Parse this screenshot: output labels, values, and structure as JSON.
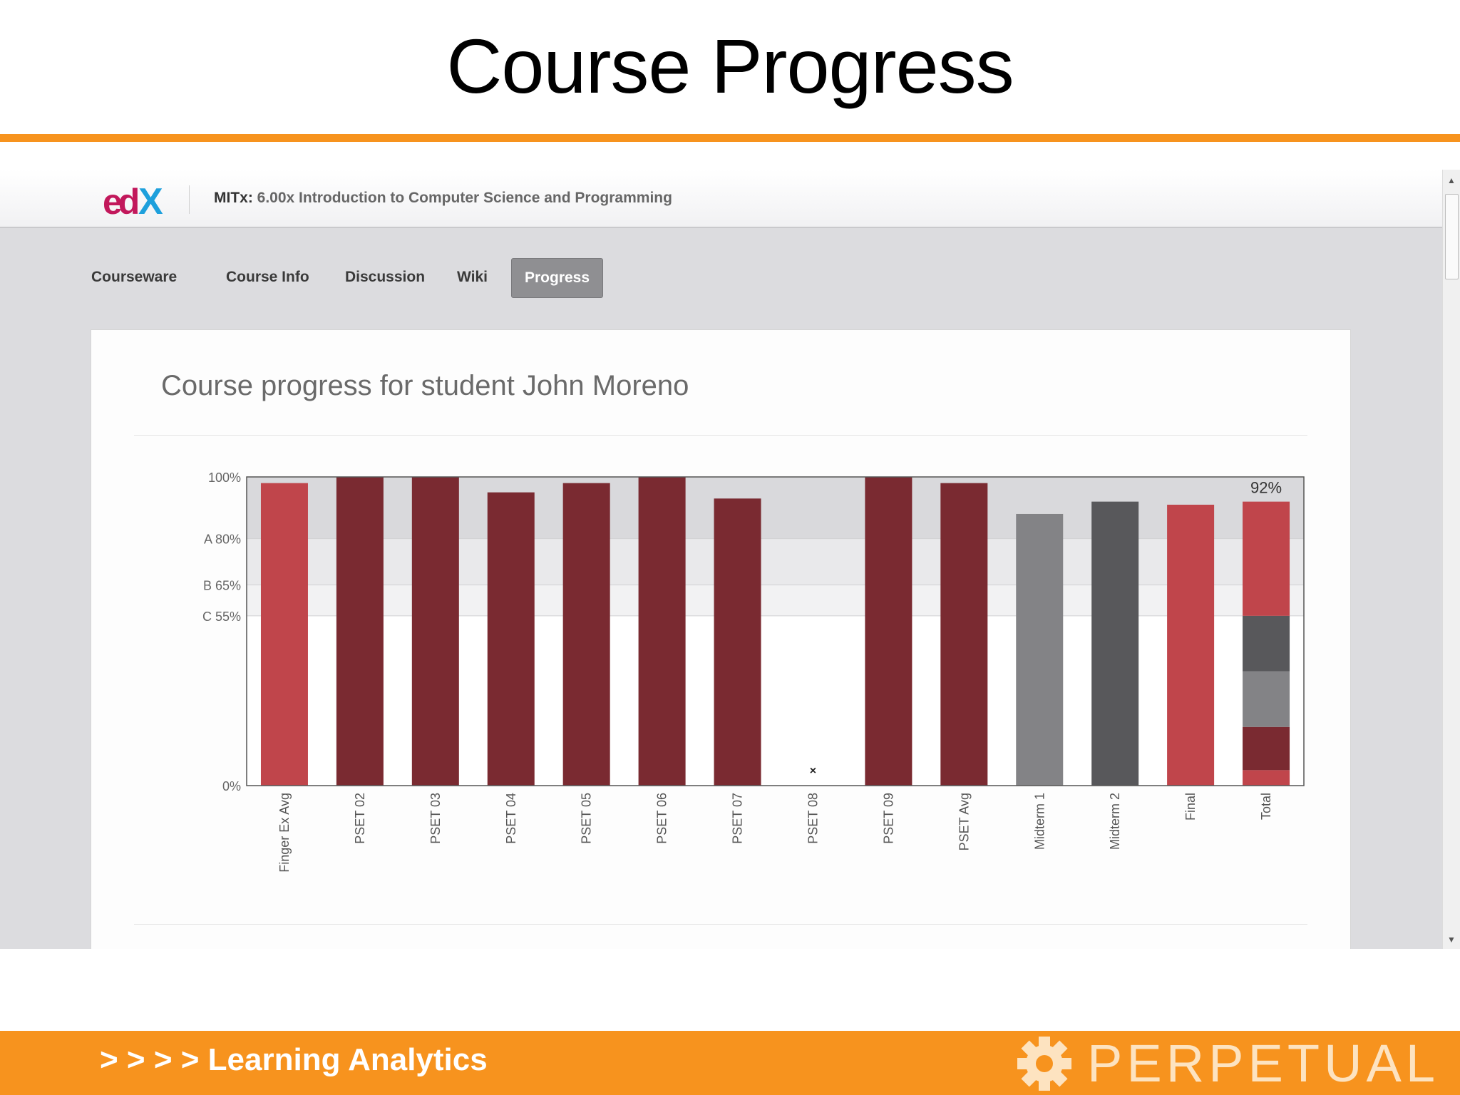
{
  "slide": {
    "title": "Course Progress",
    "footer": "> > > > Learning Analytics",
    "brand": "PERPETUAL"
  },
  "edx": {
    "logo": "edX",
    "course_org": "MITx:",
    "course_name": "6.00x Introduction to Computer Science and Programming",
    "tabs": [
      {
        "label": "Courseware",
        "active": false
      },
      {
        "label": "Course Info",
        "active": false
      },
      {
        "label": "Discussion",
        "active": false
      },
      {
        "label": "Wiki",
        "active": false
      },
      {
        "label": "Progress",
        "active": true
      }
    ],
    "heading": "Course progress for student John Moreno"
  },
  "colors": {
    "accent_orange": "#f7931e",
    "bar_light_red": "#c0454b",
    "bar_dark_red": "#7a2a31",
    "bar_gray": "#838386",
    "bar_dark_gray": "#58585b",
    "edx_magenta": "#c2185b",
    "edx_blue": "#1ea0dc"
  },
  "chart_data": {
    "type": "bar",
    "categories": [
      "Finger Ex Avg",
      "PSET 02",
      "PSET 03",
      "PSET 04",
      "PSET 05",
      "PSET 06",
      "PSET 07",
      "PSET 08",
      "PSET 09",
      "PSET Avg",
      "Midterm 1",
      "Midterm 2",
      "Final",
      "Total"
    ],
    "values": [
      98,
      100,
      100,
      95,
      98,
      100,
      93,
      0,
      100,
      98,
      88,
      92,
      91,
      92
    ],
    "colors": [
      "light_red",
      "dark_red",
      "dark_red",
      "dark_red",
      "dark_red",
      "dark_red",
      "dark_red",
      "dark_red",
      "dark_red",
      "dark_red",
      "gray",
      "dark_gray",
      "light_red",
      "stacked"
    ],
    "missing_marker": {
      "category": "PSET 08",
      "symbol": "×"
    },
    "total_label": "92%",
    "total_stack": [
      {
        "color": "light_red",
        "value": 5
      },
      {
        "color": "dark_red",
        "value": 14
      },
      {
        "color": "gray",
        "value": 18
      },
      {
        "color": "dark_gray",
        "value": 18
      },
      {
        "color": "light_red",
        "value": 37
      }
    ],
    "ylim": [
      0,
      100
    ],
    "grade_cutoffs": [
      {
        "label": "100%",
        "value": 100
      },
      {
        "label": "A 80%",
        "value": 80
      },
      {
        "label": "B 65%",
        "value": 65
      },
      {
        "label": "C 55%",
        "value": 55
      },
      {
        "label": "0%",
        "value": 0
      }
    ]
  }
}
